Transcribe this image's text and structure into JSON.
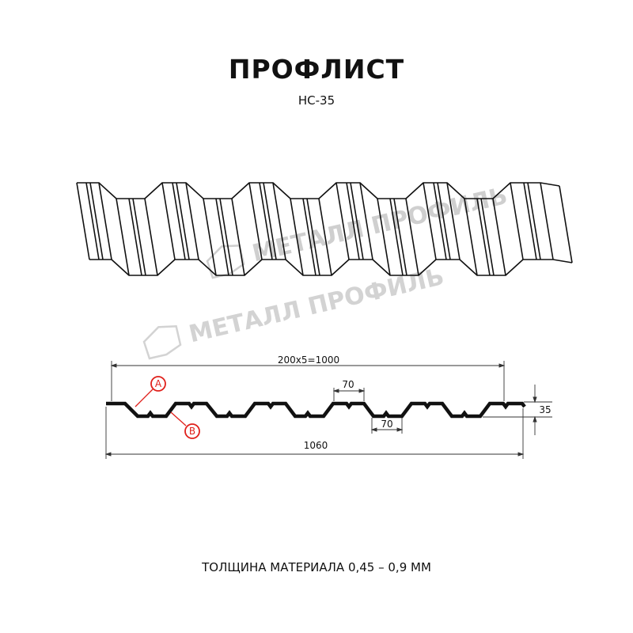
{
  "header": {
    "title": "ПРОФЛИСТ",
    "subtitle": "НС-35"
  },
  "watermark": {
    "text": "МЕТАЛЛ ПРОФИЛЬ",
    "color": "#c8c8c8"
  },
  "section": {
    "dimensions": {
      "pitch_total": "200x5=1000",
      "top_flat": "70",
      "bottom_flat": "70",
      "height": "35",
      "overall_width": "1060"
    },
    "callouts": [
      {
        "label": "A"
      },
      {
        "label": "B"
      }
    ],
    "callout_color": "#e0201b",
    "profile_color": "#111111"
  },
  "footer": {
    "text": "ТОЛЩИНА МАТЕРИАЛА 0,45 – 0,9 ММ"
  }
}
